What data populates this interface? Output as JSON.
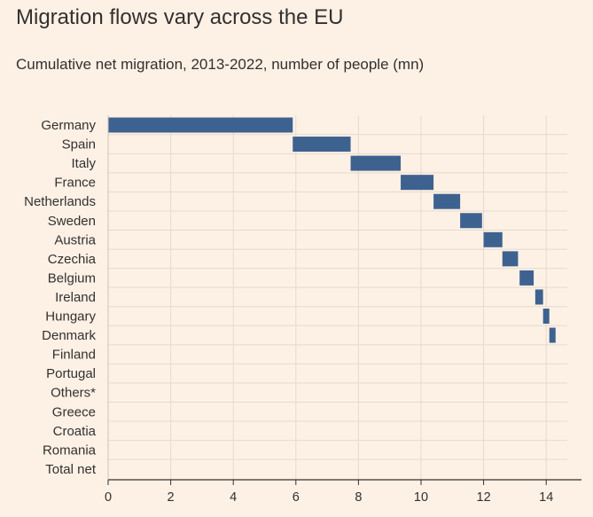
{
  "title": "Migration flows vary across the EU",
  "subtitle": "Cumulative net migration, 2013-2022, number of people (mn)",
  "chart_data": {
    "type": "bar",
    "subtype": "waterfall",
    "title": "Migration flows vary across the EU",
    "subtitle": "Cumulative net migration, 2013-2022, number of people (mn)",
    "xlabel": "",
    "ylabel": "",
    "xlim": [
      0,
      15
    ],
    "xticks": [
      0,
      2,
      4,
      6,
      8,
      10,
      12,
      14
    ],
    "grid": true,
    "categories": [
      "Germany",
      "Spain",
      "Italy",
      "France",
      "Netherlands",
      "Sweden",
      "Austria",
      "Czechia",
      "Belgium",
      "Ireland",
      "Hungary",
      "Denmark",
      "Finland",
      "Portugal",
      "Others*",
      "Greece",
      "Croatia",
      "Romania",
      "Total net"
    ],
    "start": [
      0,
      5.9,
      7.75,
      9.35,
      10.4,
      11.25,
      12.0,
      12.6,
      13.15,
      13.65,
      13.9,
      14.1,
      null,
      null,
      null,
      null,
      null,
      null,
      null
    ],
    "end": [
      5.9,
      7.75,
      9.35,
      10.4,
      11.25,
      11.95,
      12.6,
      13.1,
      13.6,
      13.9,
      14.1,
      14.3,
      null,
      null,
      null,
      null,
      null,
      null,
      null
    ],
    "bar_color": "#3e6290"
  }
}
